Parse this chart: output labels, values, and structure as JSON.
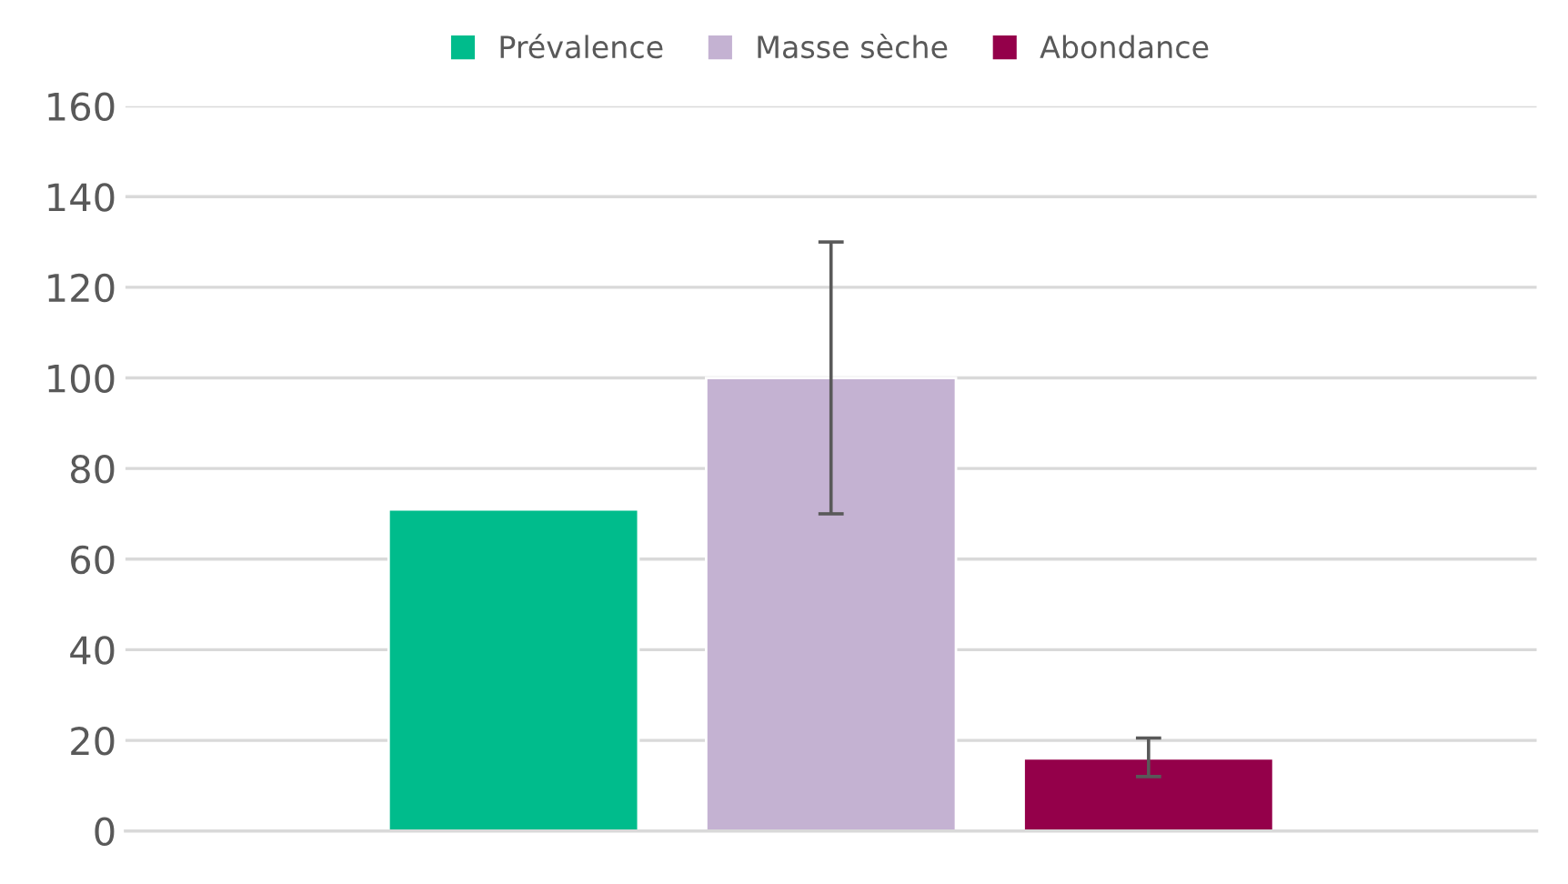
{
  "chart_data": {
    "type": "bar",
    "categories": [
      null
    ],
    "series": [
      {
        "name": "Prévalence",
        "color": "#00bc8c",
        "values": [
          71
        ],
        "errors": [
          null
        ]
      },
      {
        "name": "Masse sèche",
        "color": "#c4b2d2",
        "values": [
          100
        ],
        "errors": [
          [
            70,
            130
          ]
        ]
      },
      {
        "name": "Abondance",
        "color": "#94004a",
        "values": [
          16
        ],
        "errors": [
          [
            12,
            20.5
          ]
        ]
      }
    ],
    "ylim": [
      0,
      160
    ],
    "yticks": [
      0,
      20,
      40,
      60,
      80,
      100,
      120,
      140,
      160
    ],
    "grid": "y",
    "legend": "top"
  }
}
